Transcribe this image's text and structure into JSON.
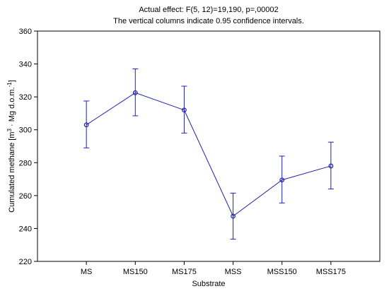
{
  "chart_data": {
    "type": "line",
    "title_lines": [
      "Actual effect: F(5, 12)=19,190, p=,00002",
      "The vertical columns indicate 0.95 confidence intervals."
    ],
    "xlabel": "Substrate",
    "ylabel_main": "Cumulated methane [m",
    "ylabel_sup1": "3",
    "ylabel_mid": " · Mg d.o.m.",
    "ylabel_sup2": "-1",
    "ylabel_end": "]",
    "categories": [
      "MS",
      "MS150",
      "MS175",
      "MSS",
      "MSS150",
      "MSS175"
    ],
    "series": [
      {
        "values": [
          303,
          322.5,
          312,
          247.5,
          269.5,
          278
        ],
        "ci_low": [
          289,
          308.5,
          298,
          233.5,
          255.5,
          264
        ],
        "ci_high": [
          317.5,
          337,
          326.5,
          261.5,
          284,
          292.5
        ],
        "color": "#2020b0"
      }
    ],
    "ylim": [
      220,
      360
    ],
    "yticks": [
      220,
      240,
      260,
      280,
      300,
      320,
      340,
      360
    ],
    "grid": false,
    "legend": "none"
  }
}
